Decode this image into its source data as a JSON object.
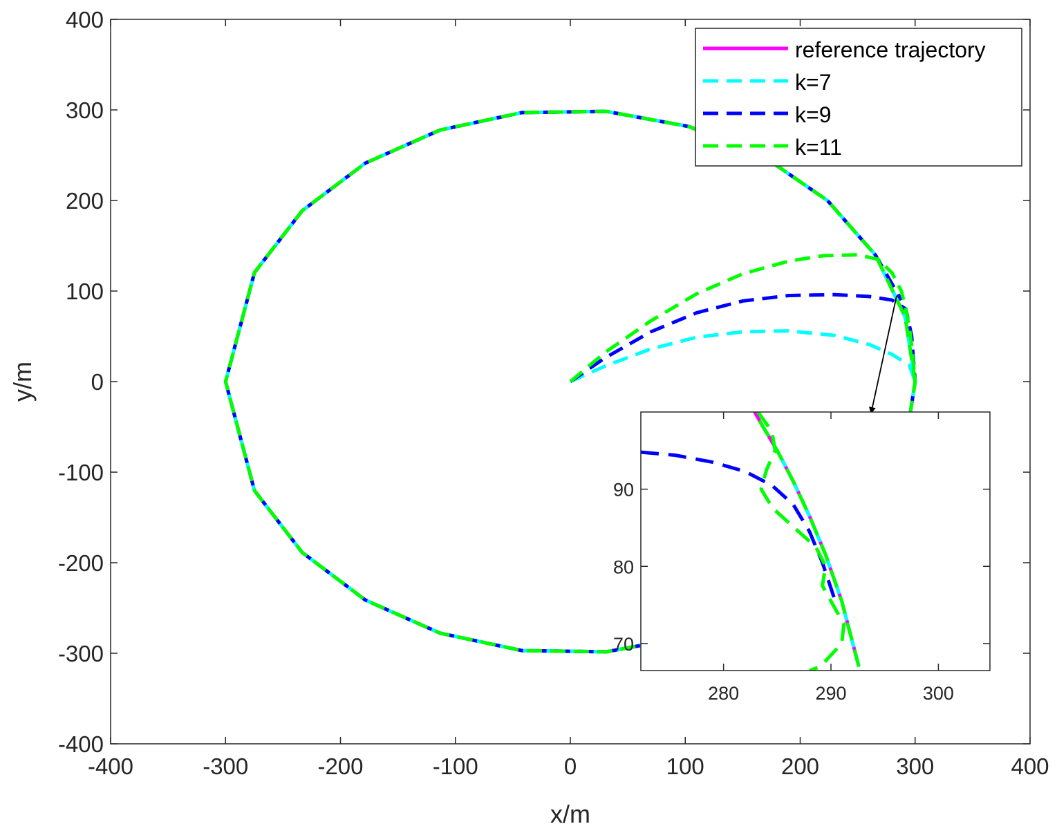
{
  "colors": {
    "reference": "#ff00ff",
    "k7": "#00ffff",
    "k9": "#0000ff",
    "k11": "#00ff00",
    "axes": "#262626",
    "arrow": "#000000"
  },
  "chart_data": [
    {
      "type": "line",
      "role": "main",
      "title": "",
      "xlabel": "x/m",
      "ylabel": "y/m",
      "xlim": [
        -400,
        400
      ],
      "ylim": [
        -400,
        400
      ],
      "xticks": [
        -400,
        -300,
        -200,
        -100,
        0,
        100,
        200,
        300,
        400
      ],
      "yticks": [
        -400,
        -300,
        -200,
        -100,
        0,
        100,
        200,
        300,
        400
      ],
      "grid": false,
      "box": true,
      "legend_position": "top-right",
      "series": [
        {
          "name": "reference trajectory",
          "key": "reference",
          "style": "solid",
          "x": [
            300,
            291.3,
            265.5,
            223.7,
            168.6,
            103.1,
            31.3,
            -42.2,
            -113.5,
            -178.4,
            -233.3,
            -274.8,
            -300,
            -274.8,
            -233.3,
            -178.4,
            -113.5,
            -42.2,
            31.3,
            103.1,
            168.6,
            223.7,
            265.5,
            291.3,
            300
          ],
          "y": [
            0,
            71.5,
            139.7,
            200,
            248.1,
            281.7,
            298.4,
            297,
            277.7,
            241.2,
            188.6,
            120.4,
            0,
            -120.4,
            -188.6,
            -241.2,
            -277.7,
            -297,
            -298.4,
            -281.7,
            -248.1,
            -200,
            -139.7,
            -71.5,
            0
          ]
        },
        {
          "name": "k=7",
          "key": "k7",
          "style": "dashed",
          "x": [
            0,
            30,
            70,
            110,
            150,
            190,
            230,
            260,
            280,
            295,
            300,
            291.3,
            265.5,
            223.7,
            168.6,
            103.1,
            31.3,
            -42.2,
            -113.5,
            -178.4,
            -233.3,
            -274.8,
            -300,
            -274.8,
            -233.3,
            -178.4,
            -113.5,
            -42.2,
            31.3,
            103.1,
            168.6,
            223.7,
            265.5,
            291.3,
            300
          ],
          "y": [
            0,
            17,
            36,
            49,
            55,
            56,
            51,
            41,
            30,
            18,
            0,
            -71.5,
            -139.7,
            -200,
            -248.1,
            -281.7,
            -298.4,
            -297,
            -277.7,
            -241.2,
            -188.6,
            -120.4,
            0,
            120.4,
            188.6,
            241.2,
            277.7,
            297,
            298.4,
            281.7,
            248.1,
            200,
            139.7,
            71.5,
            0
          ]
        },
        {
          "name": "k=9",
          "key": "k9",
          "style": "dashed",
          "x": [
            0,
            30,
            70,
            110,
            150,
            190,
            230,
            260,
            280,
            292,
            297,
            300,
            291.3,
            265.5,
            223.7,
            168.6,
            103.1,
            31.3,
            -42.2,
            -113.5,
            -178.4,
            -233.3,
            -274.8,
            -300,
            -274.8,
            -233.3,
            -178.4,
            -113.5,
            -42.2,
            31.3,
            103.1,
            168.6,
            223.7,
            265.5,
            288
          ],
          "y": [
            0,
            26,
            55,
            76,
            89,
            95,
            96,
            94,
            90,
            80,
            50,
            0,
            -71.5,
            -139.7,
            -200,
            -248.1,
            -281.7,
            -298.4,
            -297,
            -277.7,
            -241.2,
            -188.6,
            -120.4,
            0,
            120.4,
            188.6,
            241.2,
            277.7,
            297,
            298.4,
            281.7,
            248.1,
            200,
            139.7,
            90
          ]
        },
        {
          "name": "k=11",
          "key": "k11",
          "style": "dashed",
          "x": [
            0,
            30,
            70,
            110,
            150,
            190,
            220,
            250,
            268,
            280,
            288,
            292,
            295,
            297,
            298.5,
            300,
            291.3,
            265.5,
            223.7,
            168.6,
            103.1,
            31.3,
            -42.2,
            -113.5,
            -178.4,
            -233.3,
            -274.8,
            -300,
            -274.8,
            -233.3,
            -178.4,
            -113.5,
            -42.2,
            31.3,
            103.1,
            168.6,
            223.7,
            265.5,
            291.3,
            300
          ],
          "y": [
            0,
            32,
            67,
            97,
            119,
            133,
            139,
            140,
            135,
            120,
            100,
            80,
            60,
            40,
            20,
            0,
            -71.5,
            -139.7,
            -200,
            -248.1,
            -281.7,
            -298.4,
            -297,
            -277.7,
            -241.2,
            -188.6,
            -120.4,
            0,
            120.4,
            188.6,
            241.2,
            277.7,
            297,
            298.4,
            281.7,
            248.1,
            200,
            139.7,
            71.5,
            0
          ]
        }
      ]
    },
    {
      "type": "line",
      "role": "inset",
      "title": "",
      "xlabel": "",
      "ylabel": "",
      "xlim": [
        272.3,
        304.8
      ],
      "ylim": [
        66.5,
        100.0
      ],
      "xticks": [
        280,
        290,
        300
      ],
      "yticks": [
        70,
        80,
        90
      ],
      "grid": false,
      "box": true,
      "zoom_center": [
        296,
        95
      ],
      "series": [
        {
          "name": "reference trajectory",
          "key": "reference",
          "style": "solid",
          "x": [
            282.1,
            283.5,
            285.0,
            286.5,
            288.0,
            289.5,
            291.0,
            292.6
          ],
          "y": [
            102.0,
            98.5,
            95.0,
            91.0,
            86.5,
            81.5,
            75.5,
            67.0
          ]
        },
        {
          "name": "k=7",
          "key": "k7",
          "style": "dashed",
          "x": [
            285.0,
            286.5,
            288.0,
            289.5,
            291.0,
            292.6
          ],
          "y": [
            95.0,
            91.0,
            86.5,
            81.5,
            75.5,
            67.0
          ]
        },
        {
          "name": "k=9",
          "key": "k9",
          "style": "dashed",
          "x": [
            272.3,
            275.5,
            279,
            282,
            284.5,
            286.5,
            288.0,
            289.2,
            290.4
          ],
          "y": [
            94.8,
            94.4,
            93.5,
            92.3,
            90.5,
            88.0,
            84.5,
            80.5,
            75.5
          ]
        },
        {
          "name": "k=11",
          "key": "k11",
          "style": "dashed",
          "x": [
            283.2,
            284.5,
            284.8,
            284.0,
            283.5,
            284.6,
            286.6,
            288.6,
            289.5,
            289.2,
            290.2,
            291.2,
            291.0,
            290.0,
            289.0,
            288.0
          ],
          "y": [
            100.0,
            97.5,
            95.0,
            92.5,
            90.0,
            87.5,
            85.0,
            82.5,
            80.0,
            77.5,
            75.0,
            72.5,
            70.0,
            68.5,
            67.0,
            66.5
          ]
        },
        {
          "name": "k=11",
          "key": "k11",
          "style": "dashed",
          "legend": false,
          "x": [
            282.1,
            283.5,
            285.0,
            286.5,
            288.0,
            289.5,
            291.0,
            292.6
          ],
          "y": [
            102.0,
            98.5,
            95.0,
            91.0,
            86.5,
            81.5,
            75.5,
            67.0
          ]
        }
      ]
    }
  ]
}
